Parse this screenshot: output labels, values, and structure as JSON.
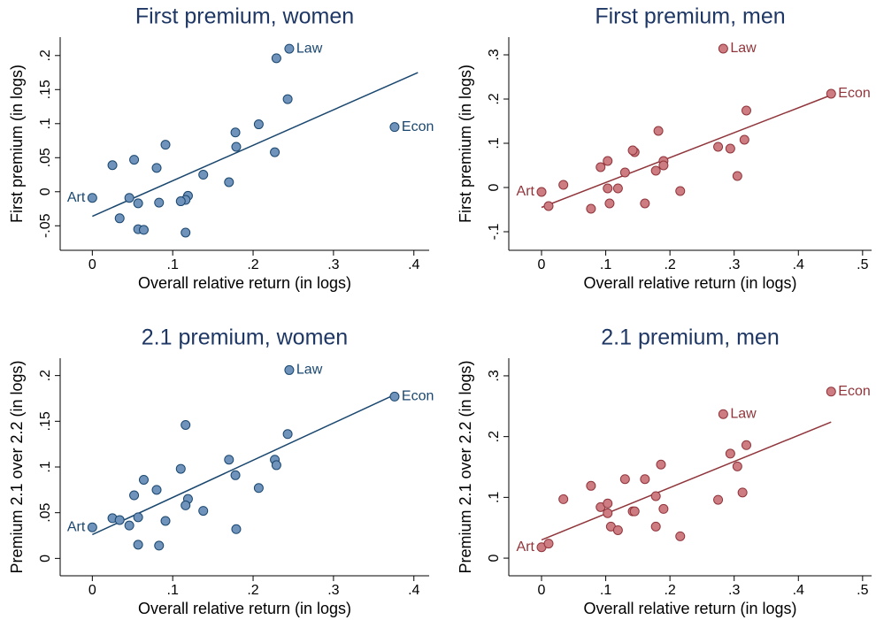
{
  "chart_data": [
    {
      "type": "scatter",
      "title": "First premium, women",
      "xlabel": "Overall relative return (in logs)",
      "ylabel": "First premium (in logs)",
      "color": "#1a476f",
      "fill": "#6f93bb",
      "x": [
        0.245,
        0.376,
        0.0,
        0.229,
        0.243,
        0.207,
        0.178,
        0.179,
        0.227,
        0.091,
        0.025,
        0.052,
        0.08,
        0.138,
        0.17,
        0.046,
        0.119,
        0.116,
        0.11,
        0.083,
        0.057,
        0.034,
        0.057,
        0.064,
        0.116
      ],
      "y": [
        0.21,
        0.095,
        -0.009,
        0.196,
        0.136,
        0.099,
        0.087,
        0.066,
        0.058,
        0.069,
        0.039,
        0.047,
        0.035,
        0.025,
        0.014,
        -0.009,
        -0.006,
        -0.012,
        -0.014,
        -0.016,
        -0.017,
        -0.039,
        -0.055,
        -0.056,
        -0.06
      ],
      "point_labels": [
        "Law",
        "Econ",
        "Art",
        null,
        null,
        null,
        null,
        null,
        null,
        null,
        null,
        null,
        null,
        null,
        null,
        null,
        null,
        null,
        null,
        null,
        null,
        null,
        null,
        null,
        null
      ],
      "fit": {
        "x": [
          0,
          0.405
        ],
        "y": [
          -0.036,
          0.175
        ]
      },
      "xlim": [
        -0.04,
        0.419
      ],
      "ylim": [
        -0.086,
        0.227
      ],
      "xticks": [
        0,
        {
          "value": 0.1,
          "label": ".1"
        },
        {
          "value": 0.2,
          "label": ".2"
        },
        {
          "value": 0.3,
          "label": ".3"
        },
        {
          "value": 0.4,
          "label": ".4"
        }
      ],
      "yticks": [
        {
          "value": -0.05,
          "label": "-.05"
        },
        0,
        {
          "value": 0.05,
          "label": ".05"
        },
        {
          "value": 0.1,
          "label": ".1"
        },
        {
          "value": 0.15,
          "label": ".15"
        },
        {
          "value": 0.2,
          "label": ".2"
        }
      ]
    },
    {
      "type": "scatter",
      "title": "First premium, men",
      "xlabel": "Overall relative return (in logs)",
      "ylabel": "First premium (in logs)",
      "color": "#90353b",
      "fill": "#cd7c82",
      "x": [
        0.283,
        0.451,
        0.0,
        0.316,
        0.305,
        0.275,
        0.294,
        0.319,
        0.182,
        0.19,
        0.19,
        0.178,
        0.145,
        0.142,
        0.13,
        0.092,
        0.103,
        0.034,
        0.011,
        0.077,
        0.103,
        0.119,
        0.106,
        0.161,
        0.216
      ],
      "y": [
        0.314,
        0.212,
        -0.01,
        0.108,
        0.026,
        0.092,
        0.088,
        0.174,
        0.128,
        0.06,
        0.05,
        0.038,
        0.08,
        0.084,
        0.034,
        0.046,
        0.06,
        0.006,
        -0.042,
        -0.048,
        -0.002,
        -0.002,
        -0.036,
        -0.036,
        -0.008
      ],
      "point_labels": [
        "Law",
        "Econ",
        "Art",
        null,
        null,
        null,
        null,
        null,
        null,
        null,
        null,
        null,
        null,
        null,
        null,
        null,
        null,
        null,
        null,
        null,
        null,
        null,
        null,
        null,
        null
      ],
      "fit": {
        "x": [
          0,
          0.451
        ],
        "y": [
          -0.045,
          0.209
        ]
      },
      "xlim": [
        -0.051,
        0.514
      ],
      "ylim": [
        -0.142,
        0.34
      ],
      "xticks": [
        0,
        {
          "value": 0.1,
          "label": ".1"
        },
        {
          "value": 0.2,
          "label": ".2"
        },
        {
          "value": 0.3,
          "label": ".3"
        },
        {
          "value": 0.4,
          "label": ".4"
        },
        {
          "value": 0.5,
          "label": ".5"
        }
      ],
      "yticks": [
        {
          "value": -0.1,
          "label": "-.1"
        },
        0,
        {
          "value": 0.1,
          "label": ".1"
        },
        {
          "value": 0.2,
          "label": ".2"
        },
        {
          "value": 0.3,
          "label": ".3"
        }
      ]
    },
    {
      "type": "scatter",
      "title": "2.1 premium, women",
      "xlabel": "Overall relative return (in logs)",
      "ylabel": "Premium 2.1 over 2.2 (in logs)",
      "color": "#1a476f",
      "fill": "#6f93bb",
      "x": [
        0.245,
        0.376,
        0.0,
        0.243,
        0.116,
        0.17,
        0.227,
        0.229,
        0.11,
        0.178,
        0.064,
        0.207,
        0.08,
        0.052,
        0.119,
        0.116,
        0.138,
        0.091,
        0.025,
        0.034,
        0.057,
        0.046,
        0.179,
        0.057,
        0.083
      ],
      "y": [
        0.206,
        0.177,
        0.034,
        0.136,
        0.146,
        0.108,
        0.108,
        0.102,
        0.098,
        0.091,
        0.086,
        0.077,
        0.075,
        0.069,
        0.065,
        0.058,
        0.052,
        0.041,
        0.044,
        0.042,
        0.045,
        0.036,
        0.032,
        0.015,
        0.014
      ],
      "point_labels": [
        "Law",
        "Econ",
        "Art",
        null,
        null,
        null,
        null,
        null,
        null,
        null,
        null,
        null,
        null,
        null,
        null,
        null,
        null,
        null,
        null,
        null,
        null,
        null,
        null,
        null,
        null
      ],
      "fit": {
        "x": [
          0,
          0.376
        ],
        "y": [
          0.026,
          0.179
        ]
      },
      "xlim": [
        -0.04,
        0.419
      ],
      "ylim": [
        -0.019,
        0.219
      ],
      "xticks": [
        0,
        {
          "value": 0.1,
          "label": ".1"
        },
        {
          "value": 0.2,
          "label": ".2"
        },
        {
          "value": 0.3,
          "label": ".3"
        },
        {
          "value": 0.4,
          "label": ".4"
        }
      ],
      "yticks": [
        0,
        {
          "value": 0.05,
          "label": ".05"
        },
        {
          "value": 0.1,
          "label": ".1"
        },
        {
          "value": 0.15,
          "label": ".15"
        },
        {
          "value": 0.2,
          "label": ".2"
        }
      ]
    },
    {
      "type": "scatter",
      "title": "2.1 premium, men",
      "xlabel": "Overall relative return (in logs)",
      "ylabel": "Premium 2.1 over 2.2 (in logs)",
      "color": "#90353b",
      "fill": "#cd7c82",
      "x": [
        0.283,
        0.451,
        0.0,
        0.319,
        0.294,
        0.305,
        0.186,
        0.161,
        0.13,
        0.077,
        0.313,
        0.275,
        0.034,
        0.178,
        0.092,
        0.103,
        0.103,
        0.142,
        0.145,
        0.19,
        0.108,
        0.119,
        0.178,
        0.216,
        0.011
      ],
      "y": [
        0.237,
        0.274,
        0.018,
        0.186,
        0.172,
        0.151,
        0.154,
        0.13,
        0.13,
        0.119,
        0.108,
        0.096,
        0.097,
        0.102,
        0.084,
        0.09,
        0.074,
        0.077,
        0.077,
        0.081,
        0.052,
        0.046,
        0.052,
        0.036,
        0.024
      ],
      "point_labels": [
        "Law",
        "Econ",
        "Art",
        null,
        null,
        null,
        null,
        null,
        null,
        null,
        null,
        null,
        null,
        null,
        null,
        null,
        null,
        null,
        null,
        null,
        null,
        null,
        null,
        null,
        null
      ],
      "fit": {
        "x": [
          0,
          0.451
        ],
        "y": [
          0.03,
          0.224
        ]
      },
      "xlim": [
        -0.051,
        0.514
      ],
      "ylim": [
        -0.029,
        0.329
      ],
      "xticks": [
        0,
        {
          "value": 0.1,
          "label": ".1"
        },
        {
          "value": 0.2,
          "label": ".2"
        },
        {
          "value": 0.3,
          "label": ".3"
        },
        {
          "value": 0.4,
          "label": ".4"
        },
        {
          "value": 0.5,
          "label": ".5"
        }
      ],
      "yticks": [
        0,
        {
          "value": 0.1,
          "label": ".1"
        },
        {
          "value": 0.2,
          "label": ".2"
        },
        {
          "value": 0.3,
          "label": ".3"
        }
      ]
    }
  ]
}
